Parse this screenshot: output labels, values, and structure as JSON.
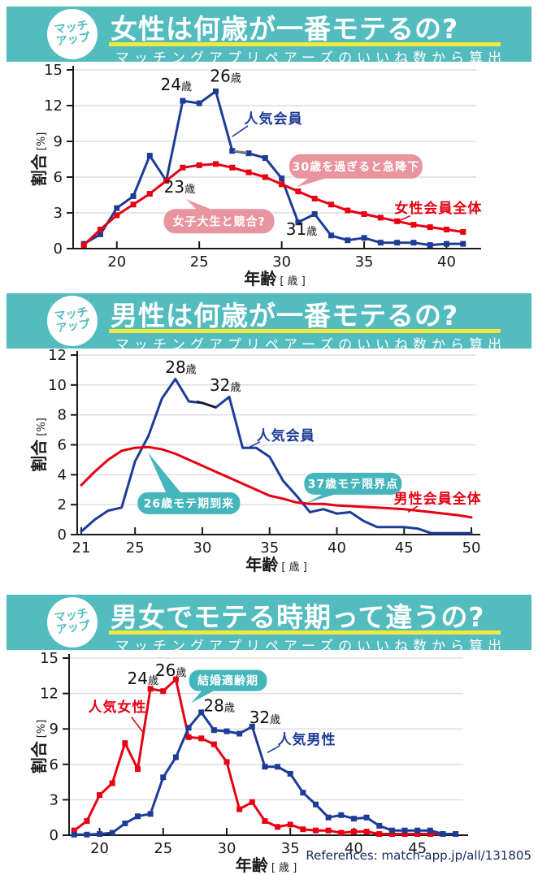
{
  "logo": {
    "line1": "マッチ",
    "line2": "アップ"
  },
  "panels": [
    {
      "title": "女性は何歳が一番モテるの?",
      "subtitle": "マッチングアプリペアーズのいいね数から算出"
    },
    {
      "title": "男性は何歳が一番モテるの?",
      "subtitle": "マッチングアプリペアーズのいいね数から算出"
    },
    {
      "title": "男女でモテる時期って違うの?",
      "subtitle": "マッチングアプリペアーズのいいね数から算出"
    }
  ],
  "references": "References: match-app.jp/all/131805",
  "colors": {
    "header_teal": "#53bcbe",
    "underline_yellow": "#f2e93e",
    "line_blue": "#1e3c96",
    "line_red": "#e60012",
    "bubble_pink": "#e895a0",
    "bubble_teal": "#45b6bb",
    "references_navy": "#1b2a63",
    "gridline": "#d9dee3"
  },
  "chart_data": [
    {
      "type": "line",
      "title": "女性は何歳が一番モテるの?",
      "xlabel": "年齢",
      "xunit": "[ 歳 ]",
      "ylabel": "割合",
      "yunit": "[%]",
      "xlim": [
        17.35,
        41.8
      ],
      "ylim": [
        0,
        15
      ],
      "xticks": [
        20,
        25,
        30,
        35,
        40
      ],
      "yticks": [
        0,
        3,
        6,
        9,
        12,
        15
      ],
      "grid": true,
      "legend_position": "inline-labels",
      "x": [
        18,
        19,
        20,
        21,
        22,
        23,
        24,
        25,
        26,
        27,
        28,
        29,
        30,
        31,
        32,
        33,
        34,
        35,
        36,
        37,
        38,
        39,
        40,
        41
      ],
      "series": [
        {
          "name": "人気会員",
          "color": "#1e3c96",
          "markers": true,
          "values": [
            0.4,
            1.2,
            3.4,
            4.4,
            7.8,
            5.7,
            12.4,
            12.2,
            13.2,
            8.2,
            8.0,
            7.6,
            5.9,
            2.2,
            2.9,
            1.1,
            0.7,
            0.9,
            0.5,
            0.5,
            0.5,
            0.3,
            0.4,
            0.4
          ]
        },
        {
          "name": "女性会員全体",
          "color": "#e60012",
          "markers": true,
          "values": [
            0.3,
            1.6,
            2.8,
            3.7,
            4.6,
            5.7,
            6.8,
            7.0,
            7.1,
            6.8,
            6.4,
            6.0,
            5.4,
            4.8,
            4.2,
            3.7,
            3.2,
            2.9,
            2.6,
            2.3,
            2.0,
            1.8,
            1.6,
            1.4
          ]
        }
      ],
      "point_labels": [
        {
          "text": "24歳",
          "x": 23.6,
          "y": 13.3
        },
        {
          "text": "26歳",
          "x": 26.6,
          "y": 14.0
        },
        {
          "text": "23歳",
          "x": 23.8,
          "y": 4.7
        },
        {
          "text": "31歳",
          "x": 31.2,
          "y": 1.15
        }
      ],
      "series_labels": [
        {
          "text": "人気会員",
          "color": "#1e3c96",
          "x": 29.5,
          "y": 10.5,
          "leader": [
            27.95,
            10.3,
            27.0,
            9.4
          ]
        },
        {
          "text": "女性会員全体",
          "color": "#e60012",
          "x": 39.5,
          "y": 3.0,
          "leader": [
            37.8,
            2.75,
            37.05,
            2.3
          ]
        }
      ],
      "leaders": [
        {
          "color": "#808080",
          "width": 2,
          "pts": [
            27.1,
            8.2,
            27.9,
            8.05
          ]
        }
      ],
      "bubbles": [
        {
          "text": "女子大生と競合?",
          "fill": "#e895a0",
          "x": 26.2,
          "y": 2.3,
          "w": 136,
          "h": 30,
          "tail": [
            24.2,
            4.15,
            24.9,
            3.2,
            25.9,
            3.2
          ]
        },
        {
          "text": "30歳を過ぎると急降下",
          "fill": "#e895a0",
          "x": 34.5,
          "y": 6.9,
          "w": 164,
          "h": 30,
          "tail": [
            30.9,
            5.15,
            31.7,
            6.0,
            32.9,
            6.0
          ]
        }
      ]
    },
    {
      "type": "line",
      "title": "男性は何歳が一番モテるの?",
      "xlabel": "年齢",
      "xunit": "[ 歳 ]",
      "ylabel": "割合",
      "yunit": "[%]",
      "xlim": [
        20.7,
        50.3
      ],
      "ylim": [
        0,
        12
      ],
      "xticks": [
        21,
        25,
        30,
        35,
        40,
        45,
        50
      ],
      "yticks": [
        0,
        2,
        4,
        6,
        8,
        10,
        12
      ],
      "grid": true,
      "legend_position": "inline-labels",
      "x": [
        21,
        22,
        23,
        24,
        25,
        26,
        27,
        28,
        29,
        30,
        31,
        32,
        33,
        34,
        35,
        36,
        37,
        38,
        39,
        40,
        41,
        42,
        43,
        44,
        45,
        46,
        47,
        48,
        49,
        50
      ],
      "series": [
        {
          "name": "人気会員",
          "color": "#1e3c96",
          "markers": false,
          "values": [
            0.2,
            1.0,
            1.6,
            1.8,
            4.9,
            6.6,
            9.1,
            10.4,
            8.9,
            8.8,
            8.5,
            9.2,
            5.8,
            5.8,
            5.2,
            3.6,
            2.6,
            1.5,
            1.7,
            1.4,
            1.5,
            0.9,
            0.5,
            0.5,
            0.5,
            0.4,
            0.1,
            0.1,
            0.1,
            0.1
          ]
        },
        {
          "name": "男性会員全体",
          "color": "#e60012",
          "markers": false,
          "values": [
            3.3,
            4.2,
            5.0,
            5.6,
            5.8,
            5.85,
            5.7,
            5.4,
            5.0,
            4.6,
            4.2,
            3.8,
            3.4,
            3.0,
            2.6,
            2.4,
            2.15,
            2.05,
            2.05,
            1.95,
            1.9,
            1.85,
            1.8,
            1.75,
            1.7,
            1.6,
            1.5,
            1.4,
            1.3,
            1.15
          ]
        }
      ],
      "point_labels": [
        {
          "text": "28歳",
          "x": 28.4,
          "y": 10.8
        },
        {
          "text": "32歳",
          "x": 31.7,
          "y": 9.6
        }
      ],
      "series_labels": [
        {
          "text": "人気会員",
          "color": "#1e3c96",
          "x": 36.2,
          "y": 6.3,
          "leader": [
            34.3,
            6.2,
            33.4,
            5.8
          ]
        },
        {
          "text": "男性会員全体",
          "color": "#e60012",
          "x": 47.5,
          "y": 2.1,
          "leader": [
            46.0,
            1.9,
            45.3,
            1.5
          ]
        }
      ],
      "leaders": [
        {
          "color": "#1a1a1a",
          "width": 2.5,
          "pts": [
            29.6,
            8.9,
            31.0,
            8.5
          ]
        }
      ],
      "bubbles": [
        {
          "text": "26歳モテ期到来",
          "fill": "#45b6bb",
          "x": 29.0,
          "y": 2.1,
          "w": 126,
          "h": 27,
          "tail": [
            25.95,
            5.5,
            27.3,
            2.8,
            28.4,
            2.8
          ]
        },
        {
          "text": "37歳モテ限界点",
          "fill": "#45b6bb",
          "x": 41.2,
          "y": 3.4,
          "w": 120,
          "h": 27,
          "tail": [
            37.7,
            2.1,
            39.2,
            2.8,
            40.3,
            2.8
          ]
        }
      ]
    },
    {
      "type": "line",
      "title": "男女でモテる時期って違うの?",
      "xlabel": "年齢",
      "xunit": "[ 歳 ]",
      "ylabel": "割合",
      "yunit": "[%]",
      "xlim": [
        17.6,
        48.6
      ],
      "ylim": [
        0,
        15
      ],
      "xticks": [
        20,
        25,
        30,
        35,
        40,
        45
      ],
      "yticks": [
        0,
        3,
        6,
        9,
        12,
        15
      ],
      "grid": true,
      "legend_position": "inline-labels",
      "x": [
        18,
        19,
        20,
        21,
        22,
        23,
        24,
        25,
        26,
        27,
        28,
        29,
        30,
        31,
        32,
        33,
        34,
        35,
        36,
        37,
        38,
        39,
        40,
        41,
        42,
        43,
        44,
        45,
        46,
        47,
        48
      ],
      "series": [
        {
          "name": "人気女性",
          "color": "#e60012",
          "markers": true,
          "values": [
            0.4,
            1.2,
            3.4,
            4.4,
            7.8,
            5.6,
            12.4,
            12.2,
            13.2,
            8.3,
            8.2,
            7.7,
            6.2,
            2.2,
            2.8,
            1.2,
            0.7,
            0.9,
            0.5,
            0.4,
            0.4,
            0.2,
            0.3,
            0.3,
            0.1,
            0.1,
            0.1,
            0.1,
            0.1,
            0.1,
            0.1
          ]
        },
        {
          "name": "人気男性",
          "color": "#1e3c96",
          "markers": true,
          "values": [
            0.05,
            0.05,
            0.1,
            0.2,
            1.0,
            1.6,
            1.8,
            4.9,
            6.6,
            9.1,
            10.4,
            8.9,
            8.8,
            8.6,
            9.2,
            5.8,
            5.8,
            5.2,
            3.6,
            2.6,
            1.5,
            1.7,
            1.4,
            1.5,
            0.8,
            0.4,
            0.4,
            0.4,
            0.4,
            0.1,
            0.1
          ]
        }
      ],
      "point_labels": [
        {
          "text": "24歳",
          "x": 23.4,
          "y": 12.8
        },
        {
          "text": "26歳",
          "x": 25.6,
          "y": 13.5
        },
        {
          "text": "28歳",
          "x": 29.4,
          "y": 10.5
        },
        {
          "text": "32歳",
          "x": 33.0,
          "y": 9.5
        }
      ],
      "series_labels": [
        {
          "text": "人気女性",
          "color": "#e60012",
          "x": 21.4,
          "y": 10.45,
          "leader": [
            22.5,
            10.0,
            23.5,
            8.6
          ]
        },
        {
          "text": "人気男性",
          "color": "#1e3c96",
          "x": 36.3,
          "y": 7.7,
          "leader": [
            34.2,
            7.6,
            33.2,
            7.0
          ]
        }
      ],
      "leaders": [],
      "bubbles": [
        {
          "text": "結婚適齢期",
          "fill": "#45b6bb",
          "x": 30.1,
          "y": 13.1,
          "w": 96,
          "h": 26,
          "tail": [
            27.2,
            11.2,
            28.1,
            12.3,
            29.1,
            12.3
          ]
        }
      ]
    }
  ]
}
